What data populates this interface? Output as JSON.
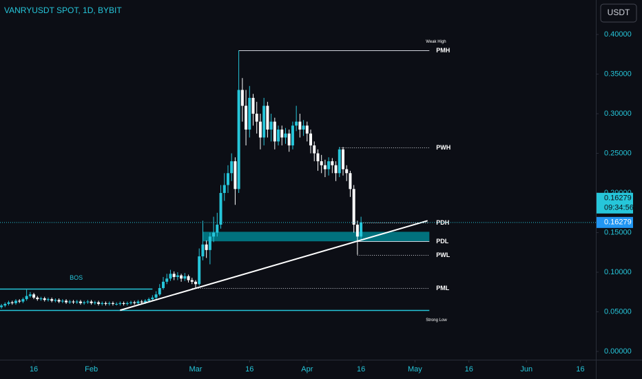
{
  "chart_data": {
    "type": "candlestick",
    "title": "VANRYUSDT SPOT, 1D, BYBIT",
    "currency": "USDT",
    "up_color": "#26c6da",
    "down_color": "#ffffff",
    "xlim": [
      -0.4,
      165.3
    ],
    "ylim": [
      -0.0104,
      0.4435
    ],
    "xticks": [
      {
        "value": 9,
        "label": "16"
      },
      {
        "value": 25,
        "label": "Feb"
      },
      {
        "value": 54,
        "label": "Mar"
      },
      {
        "value": 69,
        "label": "16"
      },
      {
        "value": 85,
        "label": "Apr"
      },
      {
        "value": 100,
        "label": "16"
      },
      {
        "value": 115,
        "label": "May"
      },
      {
        "value": 130,
        "label": "16"
      },
      {
        "value": 146,
        "label": "Jun"
      },
      {
        "value": 161,
        "label": "16"
      }
    ],
    "yticks": [
      {
        "value": 0,
        "label": "0.00000"
      },
      {
        "value": 0.05,
        "label": "0.05000"
      },
      {
        "value": 0.1,
        "label": "0.10000"
      },
      {
        "value": 0.15,
        "label": "0.15000"
      },
      {
        "value": 0.2,
        "label": "0.20000"
      },
      {
        "value": 0.25,
        "label": "0.25000"
      },
      {
        "value": 0.3,
        "label": "0.30000"
      },
      {
        "value": 0.35,
        "label": "0.35000"
      },
      {
        "value": 0.4,
        "label": "0.40000"
      }
    ],
    "open": [
      0.056,
      0.058,
      0.06,
      0.062,
      0.061,
      0.064,
      0.063,
      0.066,
      0.07,
      0.072,
      0.068,
      0.066,
      0.067,
      0.065,
      0.066,
      0.064,
      0.065,
      0.063,
      0.064,
      0.062,
      0.063,
      0.062,
      0.063,
      0.061,
      0.062,
      0.063,
      0.061,
      0.062,
      0.06,
      0.061,
      0.06,
      0.061,
      0.06,
      0.06,
      0.061,
      0.06,
      0.061,
      0.062,
      0.061,
      0.063,
      0.062,
      0.064,
      0.066,
      0.068,
      0.072,
      0.08,
      0.088,
      0.092,
      0.098,
      0.094,
      0.096,
      0.092,
      0.095,
      0.09,
      0.088,
      0.085,
      0.12,
      0.135,
      0.128,
      0.145,
      0.15,
      0.16,
      0.2,
      0.21,
      0.225,
      0.24,
      0.205,
      0.33,
      0.31,
      0.28,
      0.32,
      0.3,
      0.29,
      0.27,
      0.31,
      0.28,
      0.29,
      0.265,
      0.28,
      0.27,
      0.275,
      0.26,
      0.285,
      0.29,
      0.28,
      0.285,
      0.275,
      0.26,
      0.25,
      0.24,
      0.235,
      0.23,
      0.24,
      0.235,
      0.225,
      0.255,
      0.23,
      0.225,
      0.205,
      0.16,
      0.145
    ],
    "high": [
      0.06,
      0.062,
      0.064,
      0.064,
      0.066,
      0.066,
      0.068,
      0.078,
      0.075,
      0.074,
      0.07,
      0.069,
      0.069,
      0.068,
      0.068,
      0.067,
      0.067,
      0.066,
      0.066,
      0.065,
      0.065,
      0.065,
      0.065,
      0.064,
      0.065,
      0.065,
      0.064,
      0.064,
      0.063,
      0.063,
      0.063,
      0.063,
      0.062,
      0.063,
      0.063,
      0.063,
      0.064,
      0.064,
      0.065,
      0.065,
      0.066,
      0.068,
      0.071,
      0.076,
      0.085,
      0.094,
      0.098,
      0.103,
      0.101,
      0.1,
      0.098,
      0.099,
      0.097,
      0.093,
      0.09,
      0.13,
      0.165,
      0.14,
      0.15,
      0.17,
      0.175,
      0.21,
      0.225,
      0.235,
      0.25,
      0.245,
      0.38,
      0.345,
      0.33,
      0.335,
      0.325,
      0.315,
      0.3,
      0.32,
      0.315,
      0.3,
      0.295,
      0.285,
      0.285,
      0.282,
      0.28,
      0.29,
      0.31,
      0.3,
      0.292,
      0.29,
      0.28,
      0.265,
      0.255,
      0.248,
      0.242,
      0.245,
      0.244,
      0.24,
      0.258,
      0.258,
      0.235,
      0.228,
      0.21,
      0.165,
      0.17
    ],
    "low": [
      0.054,
      0.056,
      0.058,
      0.059,
      0.059,
      0.061,
      0.061,
      0.064,
      0.068,
      0.066,
      0.064,
      0.064,
      0.063,
      0.063,
      0.062,
      0.062,
      0.061,
      0.061,
      0.06,
      0.06,
      0.06,
      0.06,
      0.059,
      0.059,
      0.06,
      0.059,
      0.059,
      0.058,
      0.058,
      0.058,
      0.058,
      0.058,
      0.058,
      0.058,
      0.058,
      0.058,
      0.059,
      0.059,
      0.059,
      0.06,
      0.06,
      0.062,
      0.064,
      0.066,
      0.07,
      0.078,
      0.085,
      0.089,
      0.09,
      0.09,
      0.088,
      0.089,
      0.087,
      0.085,
      0.08,
      0.083,
      0.115,
      0.118,
      0.11,
      0.138,
      0.145,
      0.155,
      0.19,
      0.2,
      0.215,
      0.185,
      0.2,
      0.29,
      0.26,
      0.27,
      0.285,
      0.275,
      0.255,
      0.26,
      0.27,
      0.265,
      0.255,
      0.26,
      0.26,
      0.262,
      0.252,
      0.255,
      0.278,
      0.27,
      0.272,
      0.265,
      0.25,
      0.24,
      0.228,
      0.225,
      0.22,
      0.222,
      0.225,
      0.215,
      0.22,
      0.222,
      0.215,
      0.195,
      0.15,
      0.122,
      0.14
    ],
    "close": [
      0.058,
      0.06,
      0.062,
      0.061,
      0.064,
      0.063,
      0.066,
      0.07,
      0.072,
      0.068,
      0.066,
      0.067,
      0.065,
      0.066,
      0.064,
      0.065,
      0.063,
      0.064,
      0.062,
      0.063,
      0.062,
      0.063,
      0.061,
      0.062,
      0.063,
      0.061,
      0.062,
      0.06,
      0.061,
      0.06,
      0.061,
      0.06,
      0.06,
      0.061,
      0.06,
      0.061,
      0.062,
      0.061,
      0.063,
      0.062,
      0.064,
      0.066,
      0.068,
      0.072,
      0.08,
      0.088,
      0.092,
      0.098,
      0.094,
      0.096,
      0.092,
      0.095,
      0.09,
      0.088,
      0.085,
      0.12,
      0.135,
      0.128,
      0.145,
      0.15,
      0.16,
      0.2,
      0.21,
      0.225,
      0.24,
      0.205,
      0.33,
      0.31,
      0.28,
      0.32,
      0.3,
      0.29,
      0.27,
      0.31,
      0.28,
      0.29,
      0.265,
      0.28,
      0.27,
      0.275,
      0.26,
      0.285,
      0.29,
      0.28,
      0.285,
      0.275,
      0.26,
      0.25,
      0.24,
      0.235,
      0.23,
      0.24,
      0.235,
      0.225,
      0.255,
      0.23,
      0.225,
      0.205,
      0.16,
      0.145,
      0.16279
    ],
    "levels": [
      {
        "label": "PMH",
        "value": 0.38,
        "x": [
          66,
          119
        ],
        "style": "solid",
        "note": "Weak High"
      },
      {
        "label": "PWH",
        "value": 0.257,
        "x": [
          94,
          119
        ],
        "style": "dotted"
      },
      {
        "label": "PDH",
        "value": 0.163,
        "x": [
          100,
          119
        ],
        "style": "dotted"
      },
      {
        "label": "PDL",
        "value": 0.139,
        "x": [
          99,
          119
        ],
        "style": "solid"
      },
      {
        "label": "PWL",
        "value": 0.122,
        "x": [
          99,
          119
        ],
        "style": "dotted"
      },
      {
        "label": "PML",
        "value": 0.08,
        "x": [
          53,
          119
        ],
        "style": "dotted"
      },
      {
        "label": "BOS",
        "value": 0.079,
        "x": [
          -0.4,
          42
        ],
        "style": "teal"
      },
      {
        "value": 0.052,
        "x": [
          -0.4,
          119
        ],
        "style": "teal",
        "note": "Strong Low"
      }
    ],
    "zone": {
      "values": [
        0.139,
        0.151
      ],
      "x": [
        56,
        119
      ],
      "color": "#00838f"
    },
    "trendline": {
      "x": [
        33,
        118.5
      ],
      "values": [
        0.052,
        0.165
      ]
    },
    "last": {
      "value": 0.16279,
      "countdown": "09:34:56"
    }
  }
}
